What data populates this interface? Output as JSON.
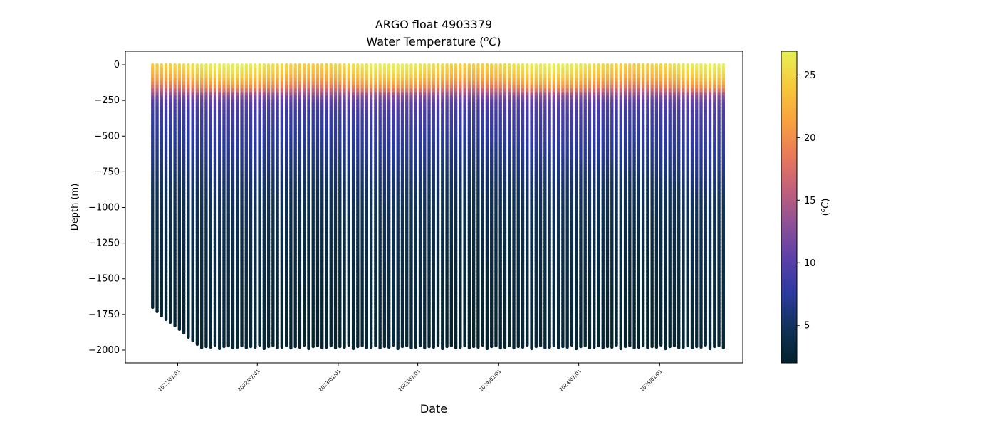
{
  "chart_data": {
    "type": "scatter",
    "title": "ARGO float 4903379",
    "subtitle_prefix": "Water Temperature (",
    "subtitle_unit_base": "o",
    "subtitle_unit_letter": "C",
    "subtitle_suffix": ")",
    "xlabel": "Date",
    "ylabel": "Depth (m)",
    "colorbar_label_prefix": "(",
    "colorbar_label_base": "o",
    "colorbar_label_letter": "C",
    "colorbar_label_suffix": ")",
    "colormap": "thermal",
    "colormap_colors": [
      "#04232e",
      "#103259",
      "#2c3aa0",
      "#5a3fa8",
      "#8d5096",
      "#c2607a",
      "#e97a58",
      "#f8a23e",
      "#f7c93c",
      "#e6f155"
    ],
    "x_range": [
      "2021-09-04",
      "2025-07-09"
    ],
    "y_range": [
      -2090,
      95
    ],
    "color_range": [
      2.0,
      26.9
    ],
    "x_ticks": [
      {
        "date": "2022-01-01",
        "label": "2022/01/01"
      },
      {
        "date": "2022-07-01",
        "label": "2022/07/01"
      },
      {
        "date": "2023-01-01",
        "label": "2023/01/01"
      },
      {
        "date": "2023-07-01",
        "label": "2023/07/01"
      },
      {
        "date": "2024-01-01",
        "label": "2024/01/01"
      },
      {
        "date": "2024-07-01",
        "label": "2024/07/01"
      },
      {
        "date": "2025-01-01",
        "label": "2025/01/01"
      }
    ],
    "y_ticks": [
      {
        "value": 0,
        "label": "0"
      },
      {
        "value": -250,
        "label": "−250"
      },
      {
        "value": -500,
        "label": "−500"
      },
      {
        "value": -750,
        "label": "−750"
      },
      {
        "value": -1000,
        "label": "−1000"
      },
      {
        "value": -1250,
        "label": "−1250"
      },
      {
        "value": -1500,
        "label": "−1500"
      },
      {
        "value": -1750,
        "label": "−1750"
      },
      {
        "value": -2000,
        "label": "−2000"
      }
    ],
    "colorbar_ticks": [
      {
        "value": 5,
        "label": "5"
      },
      {
        "value": 10,
        "label": "10"
      },
      {
        "value": 15,
        "label": "15"
      },
      {
        "value": 20,
        "label": "20"
      },
      {
        "value": 25,
        "label": "25"
      }
    ],
    "profiles": {
      "start_date": "2021-11-05",
      "end_date": "2025-05-26",
      "count": 129,
      "max_depths_first": [
        -1700,
        -1730,
        -1760,
        -1785,
        -1805,
        -1830,
        -1855,
        -1880,
        -1910,
        -1935,
        -1960
      ],
      "max_depth_typical": -1975,
      "max_depth_variation": [
        -1970,
        -1985,
        -1975,
        -1980,
        -1965,
        -1990,
        -1975,
        -1970,
        -1985,
        -1980
      ],
      "temperature_profile": [
        {
          "depth": 0,
          "temp": 25.5
        },
        {
          "depth": -60,
          "temp": 24.0
        },
        {
          "depth": -110,
          "temp": 21.5
        },
        {
          "depth": -160,
          "temp": 18.5
        },
        {
          "depth": -200,
          "temp": 14.0
        },
        {
          "depth": -240,
          "temp": 11.0
        },
        {
          "depth": -320,
          "temp": 9.0
        },
        {
          "depth": -450,
          "temp": 8.0
        },
        {
          "depth": -600,
          "temp": 7.0
        },
        {
          "depth": -800,
          "temp": 5.6
        },
        {
          "depth": -1000,
          "temp": 4.6
        },
        {
          "depth": -1300,
          "temp": 3.7
        },
        {
          "depth": -1600,
          "temp": 3.0
        },
        {
          "depth": -2000,
          "temp": 2.4
        }
      ]
    }
  }
}
